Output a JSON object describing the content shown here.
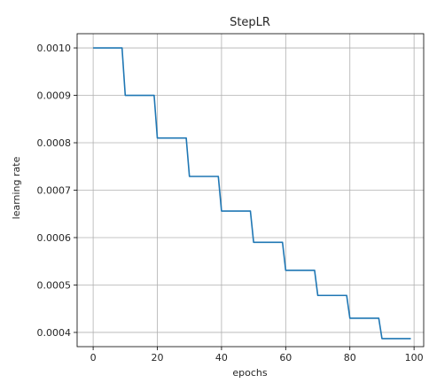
{
  "chart_data": {
    "type": "line",
    "title": "StepLR",
    "xlabel": "epochs",
    "ylabel": "learning rate",
    "xlim": [
      -5,
      103
    ],
    "ylim": [
      0.00037,
      0.00103
    ],
    "grid": true,
    "xticks": [
      0,
      20,
      40,
      60,
      80,
      100
    ],
    "xtick_labels": [
      "0",
      "20",
      "40",
      "60",
      "80",
      "100"
    ],
    "yticks": [
      0.0004,
      0.0005,
      0.0006,
      0.0007,
      0.0008,
      0.0009,
      0.001
    ],
    "ytick_labels": [
      "0.0004",
      "0.0005",
      "0.0006",
      "0.0007",
      "0.0008",
      "0.0009",
      "0.0010"
    ],
    "series": [
      {
        "color": "#1f77b4",
        "step_size": 10,
        "x": [
          0,
          9,
          10,
          19,
          20,
          29,
          30,
          39,
          40,
          49,
          50,
          59,
          60,
          69,
          70,
          79,
          80,
          89,
          90,
          99
        ],
        "y": [
          0.001,
          0.001,
          0.0009,
          0.0009,
          0.00081,
          0.00081,
          0.000729,
          0.000729,
          0.000656,
          0.000656,
          0.00059,
          0.00059,
          0.000531,
          0.000531,
          0.000478,
          0.000478,
          0.00043,
          0.00043,
          0.000387,
          0.000387
        ]
      }
    ]
  }
}
